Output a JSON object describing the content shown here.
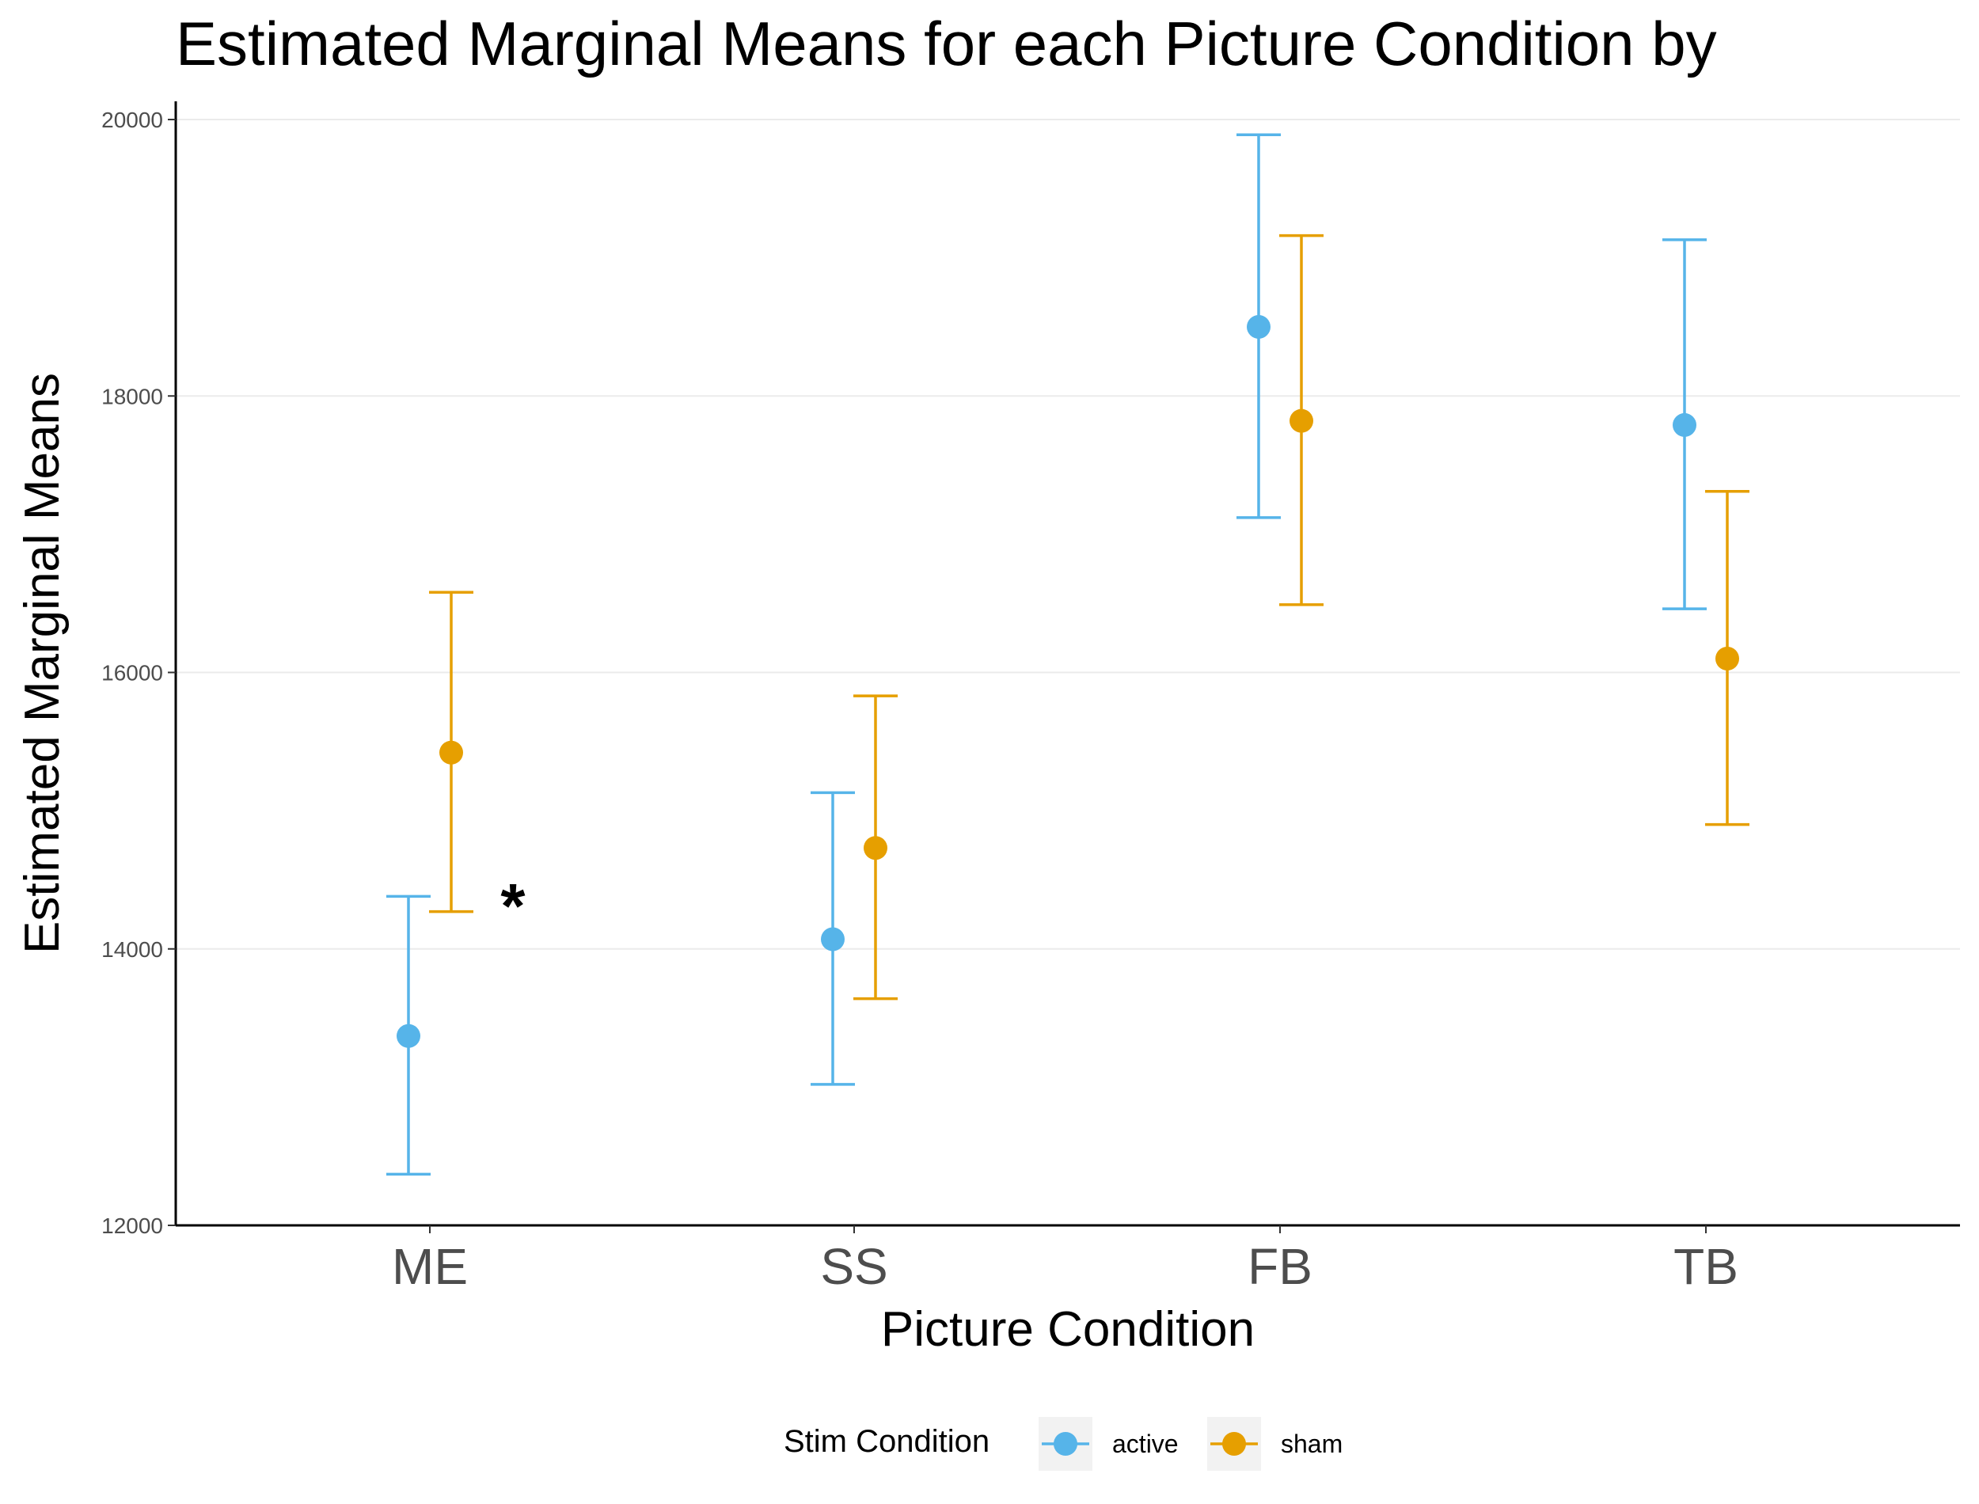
{
  "chart_data": {
    "type": "scatter",
    "title": "Estimated Marginal Means for each Picture Condition by",
    "xlabel": "Picture Condition",
    "ylabel": "Estimated Marginal Means",
    "ylim": [
      12000,
      20000
    ],
    "yticks": [
      12000,
      14000,
      16000,
      18000,
      20000
    ],
    "categories": [
      "ME",
      "SS",
      "FB",
      "TB"
    ],
    "grid": "horizontal major lines",
    "legend": {
      "title": "Stim Condition",
      "placement": "bottom"
    },
    "series": [
      {
        "name": "active",
        "color": "#56B4E9",
        "values": [
          13370,
          14070,
          18500,
          17790
        ],
        "lower": [
          12370,
          13020,
          17120,
          16460
        ],
        "upper": [
          14380,
          15130,
          19890,
          19130
        ]
      },
      {
        "name": "sham",
        "color": "#E69F00",
        "values": [
          15420,
          14730,
          17820,
          16100
        ],
        "lower": [
          14270,
          13640,
          16490,
          14900
        ],
        "upper": [
          16580,
          15830,
          19160,
          17310
        ]
      }
    ],
    "annotations": [
      {
        "text": "*",
        "category": "ME",
        "y": 14450
      }
    ]
  }
}
